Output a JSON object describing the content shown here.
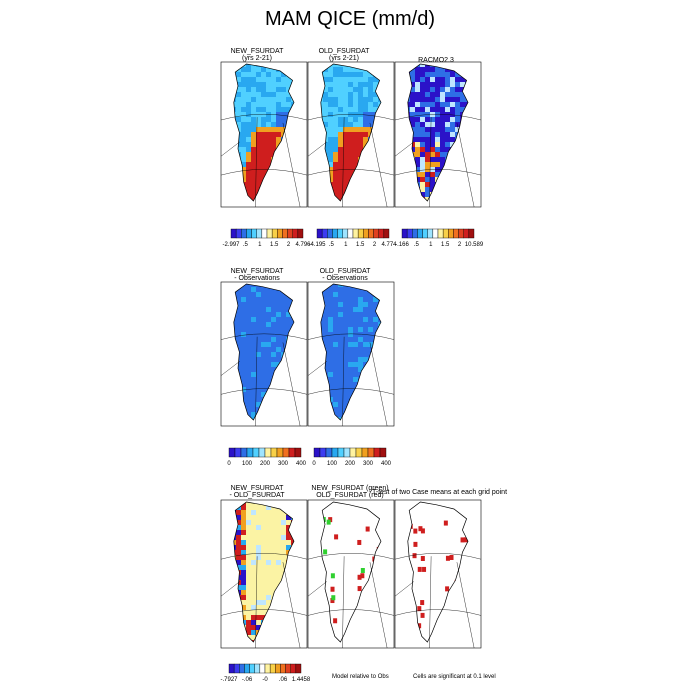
{
  "title": "MAM QICE (mm/d)",
  "colors": {
    "deep_blue": "#2b12c8",
    "mid_blue": "#2e6ee6",
    "light_blue": "#29a8f0",
    "cyan": "#50d0ff",
    "pale_blue": "#bfe6ff",
    "red": "#cf1e1e",
    "orange": "#f0a020",
    "yellow": "#fbf3a4",
    "green": "#30d030",
    "land_line": "#000000"
  },
  "chart_data": [
    {
      "type": "heatmap",
      "name_top": "NEW_FSURDAT",
      "name_bottom": "(yrs 2-21)",
      "colorbar_ticks": [
        "-2.997",
        ".5",
        "1",
        "1.5",
        "2",
        "4.796"
      ]
    },
    {
      "type": "heatmap",
      "name_top": "OLD_FSURDAT",
      "name_bottom": "(yrs 2-21)",
      "colorbar_ticks": [
        "-4.195",
        ".5",
        "1",
        "1.5",
        "2",
        "4.774"
      ]
    },
    {
      "type": "heatmap",
      "name_top": "RACMO2.3",
      "name_bottom": "",
      "colorbar_ticks": [
        "-.166",
        ".5",
        "1",
        "1.5",
        "2",
        "10.589"
      ]
    },
    {
      "type": "heatmap",
      "name_top": "NEW_FSURDAT",
      "name_bottom": "- Observations",
      "colorbar_ticks": [
        "0",
        "100",
        "200",
        "300",
        "400"
      ]
    },
    {
      "type": "heatmap",
      "name_top": "OLD_FSURDAT",
      "name_bottom": "- Observations",
      "colorbar_ticks": [
        "0",
        "100",
        "200",
        "300",
        "400"
      ]
    },
    {
      "type": "heatmap",
      "name_top": "NEW_FSURDAT",
      "name_bottom": "- OLD_FSURDAT",
      "colorbar_ticks": [
        "-.7927",
        "-.06",
        "-0",
        ".06",
        "1.4458"
      ]
    },
    {
      "type": "heatmap",
      "name_top": "NEW_FSURDAT (green)",
      "name_bottom": "OLD_FSURDAT (red)",
      "note": "T-test of two Case means at each grid point"
    },
    {
      "type": "heatmap",
      "name_top": "",
      "name_bottom": ""
    }
  ],
  "footnotes": {
    "model_relative": "Model relative to Obs",
    "cells_significant": "Cells are significant at 0.1 level"
  }
}
